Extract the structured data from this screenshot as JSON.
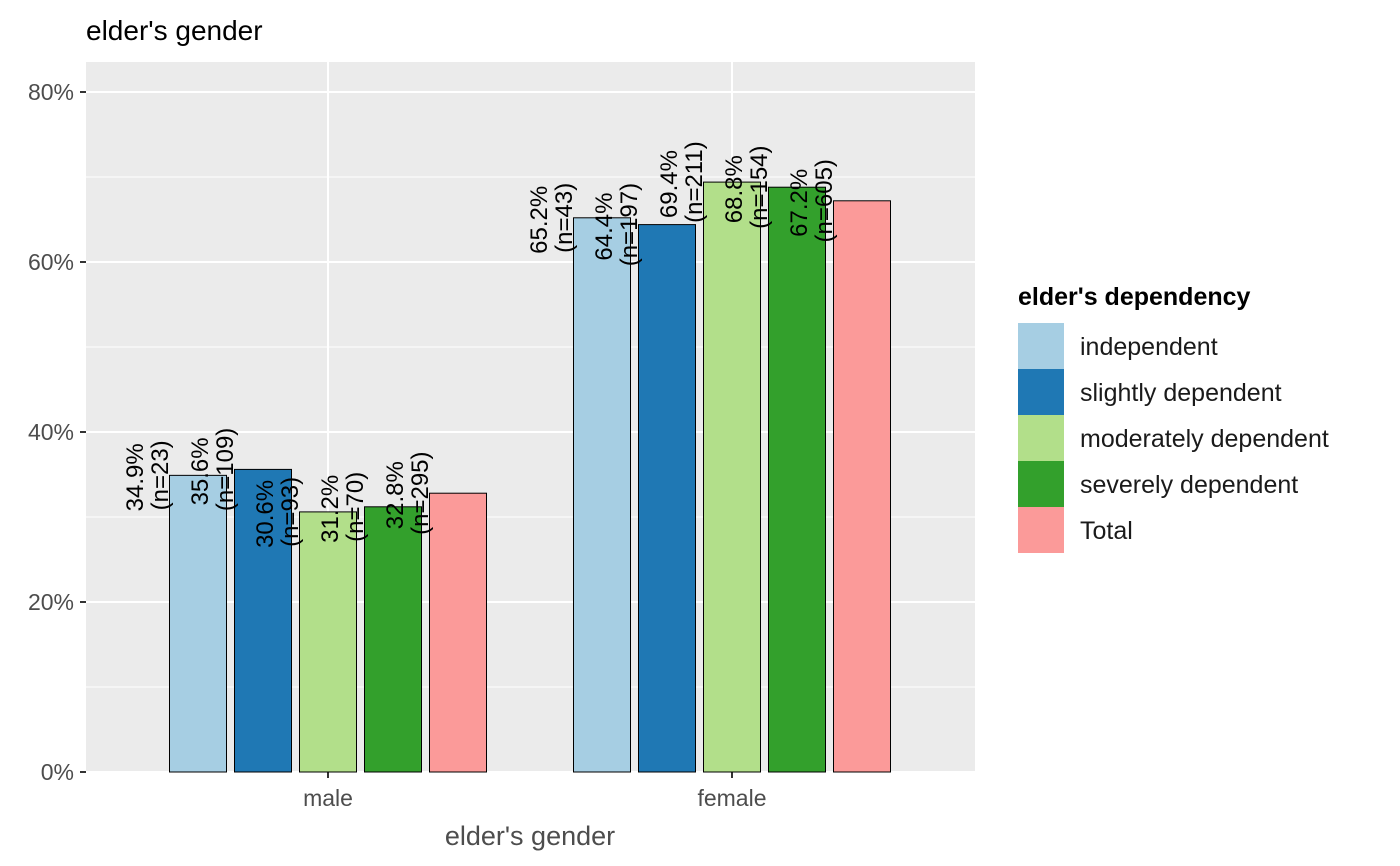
{
  "chart_data": {
    "type": "bar",
    "title": "elder's gender",
    "xlabel": "elder's gender",
    "ylabel": "",
    "categories": [
      "male",
      "female"
    ],
    "ylim": [
      0,
      80
    ],
    "yticks": [
      0,
      20,
      40,
      60,
      80
    ],
    "ytick_labels": [
      "0%",
      "20%",
      "40%",
      "60%",
      "80%"
    ],
    "grid": true,
    "legend": {
      "title": "elder's dependency",
      "position": "right"
    },
    "series": [
      {
        "name": "independent",
        "color": "#a6cee3",
        "values": [
          34.9,
          65.2
        ],
        "value_labels": [
          "34.9%",
          "65.2%"
        ],
        "n_labels": [
          "(n=23)",
          "(n=43)"
        ]
      },
      {
        "name": "slightly dependent",
        "color": "#1f78b4",
        "values": [
          35.6,
          64.4
        ],
        "value_labels": [
          "35.6%",
          "64.4%"
        ],
        "n_labels": [
          "(n=109)",
          "(n=197)"
        ]
      },
      {
        "name": "moderately dependent",
        "color": "#b2df8a",
        "values": [
          30.6,
          69.4
        ],
        "value_labels": [
          "30.6%",
          "69.4%"
        ],
        "n_labels": [
          "(n=93)",
          "(n=211)"
        ]
      },
      {
        "name": "severely dependent",
        "color": "#33a02c",
        "values": [
          31.2,
          68.8
        ],
        "value_labels": [
          "31.2%",
          "68.8%"
        ],
        "n_labels": [
          "(n=70)",
          "(n=154)"
        ]
      },
      {
        "name": "Total",
        "color": "#fb9a99",
        "values": [
          32.8,
          67.2
        ],
        "value_labels": [
          "32.8%",
          "67.2%"
        ],
        "n_labels": [
          "(n=295)",
          "(n=605)"
        ]
      }
    ]
  }
}
